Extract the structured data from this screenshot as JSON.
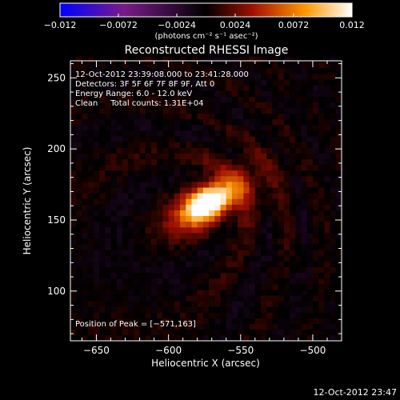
{
  "chart_data": {
    "type": "heatmap",
    "title": "Reconstructed RHESSI Image",
    "xlabel": "Heliocentric X (arcsec)",
    "ylabel": "Heliocentric Y (arcsec)",
    "xlim": [
      -668,
      -480
    ],
    "ylim": [
      65,
      262
    ],
    "x_ticks": [
      -650,
      -600,
      -550,
      -500
    ],
    "y_ticks": [
      100,
      150,
      200,
      250
    ],
    "x_tick_labels": [
      "−650",
      "−600",
      "−550",
      "−500"
    ],
    "y_tick_labels": [
      "100",
      "150",
      "200",
      "250"
    ],
    "colorbar": {
      "min": -0.012,
      "max": 0.012,
      "ticks": [
        -0.012,
        -0.0072,
        -0.0024,
        0.0024,
        0.0072,
        0.012
      ],
      "tick_labels": [
        "−0.012",
        "−0.0072",
        "−0.0024",
        "0.0024",
        "0.0072",
        "0.012"
      ],
      "label": "(photons cm⁻² s⁻¹ asec⁻²)",
      "colormap": [
        "#0000ff",
        "#7a1a8a",
        "#000000",
        "#a01000",
        "#ff9800",
        "#ffffff"
      ]
    },
    "annotations": {
      "time_range": "12-Oct-2012 23:39:08.000 to 23:41:28.000",
      "detectors": "Detectors: 3F 5F 6F 7F 8F 9F, Att 0",
      "energy_range": "Energy Range: 6.0 - 12.0 keV",
      "clean_line": "Clean     Total counts: 1.31E+04",
      "peak_position": "Position of Peak = [−571,163]"
    },
    "source": {
      "peak_x": -571,
      "peak_y": 163,
      "peak_value": 0.012,
      "orientation_deg": 32
    },
    "timestamp": "12-Oct-2012 23:47"
  }
}
